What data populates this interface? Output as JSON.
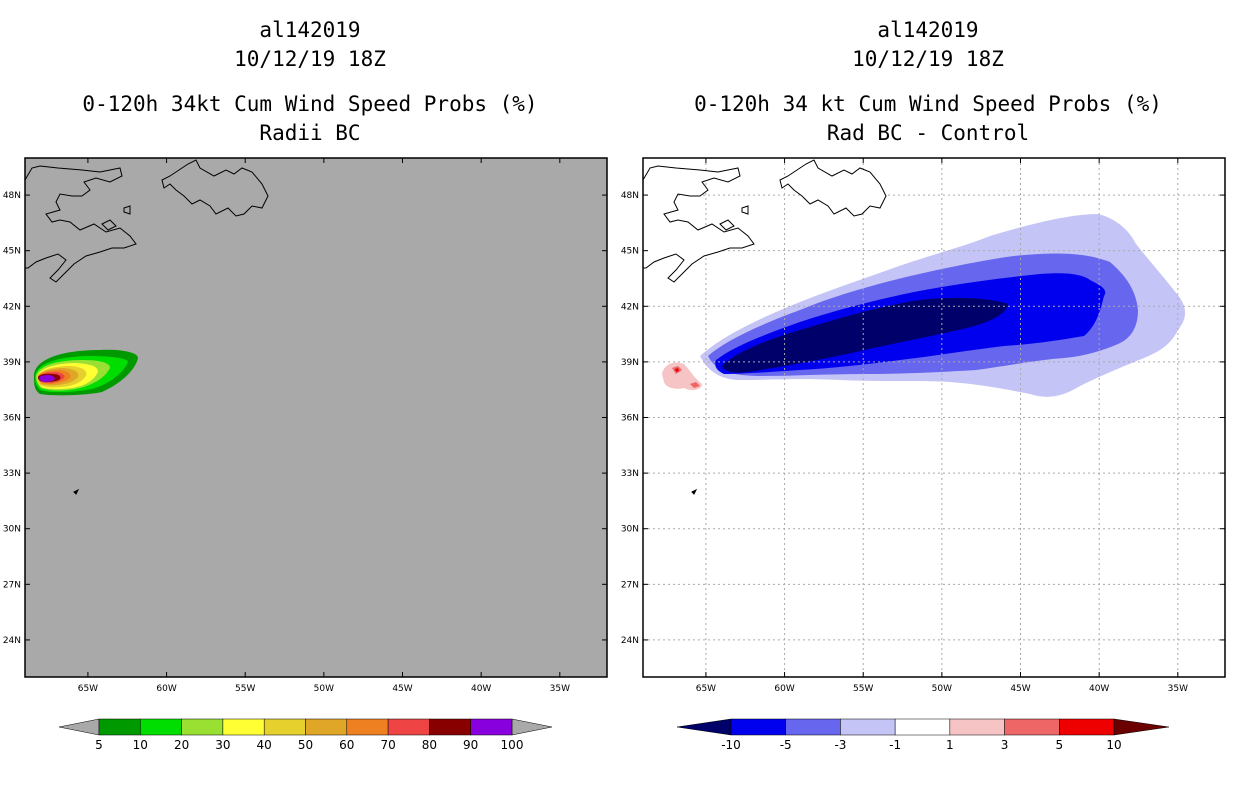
{
  "left_title": {
    "storm_id": "al142019",
    "datetime": "10/12/19 18Z",
    "product": "0-120h 34kt Cum Wind Speed Probs (%)",
    "variant": "Radii BC"
  },
  "right_title": {
    "storm_id": "al142019",
    "datetime": "10/12/19 18Z",
    "product": "0-120h 34 kt Cum Wind Speed Probs (%)",
    "variant": "Rad BC - Control"
  },
  "colors": {
    "left_background": "#a9a9a9",
    "abs_scale": [
      "#009900",
      "#00dd00",
      "#99e033",
      "#ffff33",
      "#e6d02e",
      "#e0a628",
      "#ee8022",
      "#ee4444",
      "#880000",
      "#8800dd"
    ],
    "abs_under": "#a9a9a9",
    "abs_over": "#a9a9a9",
    "diff_scale": [
      "#00006b",
      "#0000ee",
      "#6666ee",
      "#c4c4f6",
      "#ffffff",
      "#f6c4c4",
      "#ee6666",
      "#ee0000"
    ],
    "diff_under": "#00006b",
    "diff_over": "#6b0000"
  },
  "chart_data": [
    {
      "type": "heatmap",
      "title": "0-120h 34kt Cum Wind Speed Probs (%) — Radii BC",
      "xlabel": "",
      "ylabel": "",
      "xlim": [
        -69,
        -32
      ],
      "ylim": [
        22,
        50
      ],
      "x_ticks": [
        "65W",
        "60W",
        "55W",
        "50W",
        "45W",
        "40W",
        "35W"
      ],
      "x_tick_values": [
        -65,
        -60,
        -55,
        -50,
        -45,
        -40,
        -35
      ],
      "y_ticks": [
        "24N",
        "27N",
        "30N",
        "33N",
        "36N",
        "39N",
        "42N",
        "45N",
        "48N"
      ],
      "y_tick_values": [
        24,
        27,
        30,
        33,
        36,
        39,
        42,
        45,
        48
      ],
      "grid": false,
      "colorbar_levels": [
        "5",
        "10",
        "20",
        "30",
        "40",
        "50",
        "60",
        "70",
        "80",
        "90",
        "100"
      ],
      "field": "34-kt cumulative wind speed probability, maximum near 38.2N 66W (>90%), extending ENE to about 61W"
    },
    {
      "type": "heatmap",
      "title": "0-120h 34 kt Cum Wind Speed Probs (%) — Rad BC - Control",
      "xlabel": "",
      "ylabel": "",
      "xlim": [
        -69,
        -32
      ],
      "ylim": [
        22,
        50
      ],
      "x_ticks": [
        "65W",
        "60W",
        "55W",
        "50W",
        "45W",
        "40W",
        "35W"
      ],
      "x_tick_values": [
        -65,
        -60,
        -55,
        -50,
        -45,
        -40,
        -35
      ],
      "y_ticks": [
        "24N",
        "27N",
        "30N",
        "33N",
        "36N",
        "39N",
        "42N",
        "45N",
        "48N"
      ],
      "y_tick_values": [
        24,
        27,
        30,
        33,
        36,
        39,
        42,
        45,
        48
      ],
      "grid": true,
      "colorbar_levels": [
        "-10",
        "-5",
        "-3",
        "-1",
        "1",
        "3",
        "5",
        "10"
      ],
      "field": "difference field: large negative (< -10) band from 62W 39N to 45W 42N, weak negative extending to 38W 41N; small positive (1 to 5) near 66W 38.5N"
    }
  ]
}
